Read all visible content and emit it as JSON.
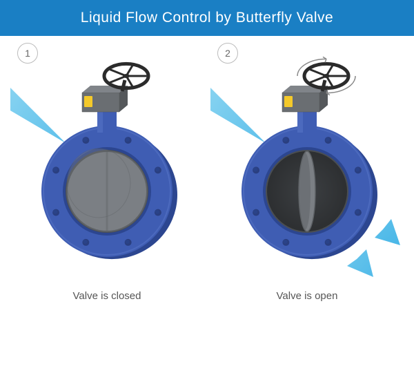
{
  "header": {
    "title": "Liquid Flow Control by Butterfly Valve",
    "bg_color": "#1a7fc4",
    "text_color": "#ffffff",
    "fontsize": 21
  },
  "panels": [
    {
      "badge": "1",
      "caption": "Valve is closed",
      "state": "closed"
    },
    {
      "badge": "2",
      "caption": "Valve is open",
      "state": "open"
    }
  ],
  "colors": {
    "valve_body": "#3f5db3",
    "valve_body_dark": "#2c4690",
    "valve_body_light": "#5a78c9",
    "flange_bolt": "#2a3f80",
    "disc_face": "#7b7f84",
    "disc_face_dark": "#5e6266",
    "bore_shadow": "#4a4e52",
    "handwheel": "#2b2b2b",
    "actuator": "#6a6e72",
    "actuator_tag": "#f4c92a",
    "flow_arrow": "#3fb3e6",
    "flow_arrow_light": "#7fd0f0",
    "rotation_arrow": "#888888",
    "badge_border": "#bbbbbb",
    "caption_color": "#555555"
  },
  "geom": {
    "flange_outer_r": 95,
    "flange_inner_r": 64,
    "bore_r": 60,
    "bolt_count": 8,
    "bolt_r": 5,
    "bolt_circle_r": 80,
    "handwheel_r": 32,
    "handwheel_spokes": 5
  }
}
